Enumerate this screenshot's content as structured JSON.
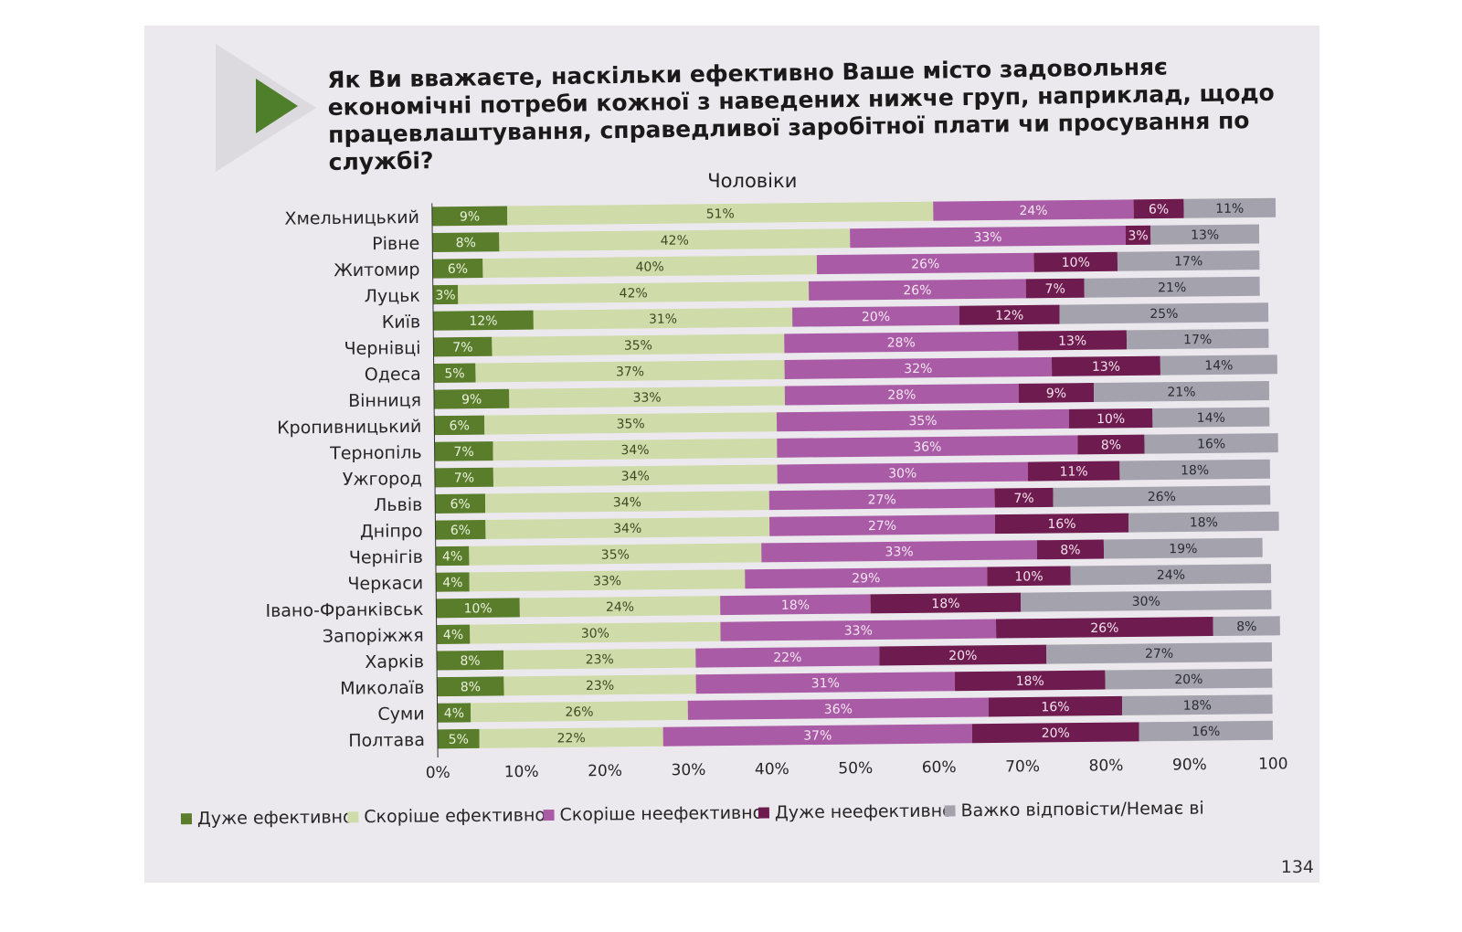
{
  "question": "Як Ви вважаєте, наскільки ефективно Ваше місто задовольняє економічні потреби кожної з наведених нижче груп, наприклад, щодо працевлаштування, справедливої заробітної плати чи просування по службі?",
  "page_number": "134",
  "chart_data": {
    "type": "bar",
    "orientation": "horizontal",
    "stacked": true,
    "title": "Чоловіки",
    "categories": [
      "Хмельницький",
      "Рівне",
      "Житомир",
      "Луцьк",
      "Київ",
      "Чернівці",
      "Одеса",
      "Вінниця",
      "Кропивницький",
      "Тернопіль",
      "Ужгород",
      "Львів",
      "Дніпро",
      "Чернігів",
      "Черкаси",
      "Івано-Франківськ",
      "Запоріжжя",
      "Харків",
      "Миколаїв",
      "Суми",
      "Полтава"
    ],
    "series": [
      {
        "name": "Дуже ефективно",
        "color": "#5a7d2c",
        "label_color": "#eaf2dc",
        "values": [
          9,
          8,
          6,
          3,
          12,
          7,
          5,
          9,
          6,
          7,
          7,
          6,
          6,
          4,
          4,
          10,
          4,
          8,
          8,
          4,
          5
        ]
      },
      {
        "name": "Скоріше ефективно",
        "color": "#cfdcaa",
        "label_color": "#3d4a22",
        "values": [
          51,
          42,
          40,
          42,
          31,
          35,
          37,
          33,
          35,
          34,
          34,
          34,
          34,
          35,
          33,
          24,
          30,
          23,
          23,
          26,
          22
        ]
      },
      {
        "name": "Скоріше неефективно",
        "color": "#a95ca5",
        "label_color": "#f6e6f4",
        "values": [
          24,
          33,
          26,
          26,
          20,
          28,
          32,
          28,
          35,
          36,
          30,
          27,
          27,
          33,
          29,
          18,
          33,
          22,
          31,
          36,
          37
        ]
      },
      {
        "name": "Дуже неефективно",
        "color": "#6e1c4f",
        "label_color": "#f6e2ee",
        "values": [
          6,
          3,
          10,
          7,
          12,
          13,
          13,
          9,
          10,
          8,
          11,
          7,
          16,
          8,
          10,
          18,
          26,
          20,
          18,
          16,
          20
        ]
      },
      {
        "name": "Важко відповісти/Немає ві",
        "color": "#a3a2ad",
        "label_color": "#2c2c34",
        "values": [
          11,
          13,
          17,
          21,
          25,
          17,
          14,
          21,
          14,
          16,
          18,
          26,
          18,
          19,
          24,
          30,
          8,
          27,
          20,
          18,
          16
        ]
      }
    ],
    "xaxis": {
      "ticks": [
        "0%",
        "10%",
        "20%",
        "30%",
        "40%",
        "50%",
        "60%",
        "70%",
        "80%",
        "90%",
        "100"
      ],
      "range": [
        0,
        100
      ]
    },
    "legend": "bottom",
    "grid": false,
    "data_labels": "percent"
  }
}
